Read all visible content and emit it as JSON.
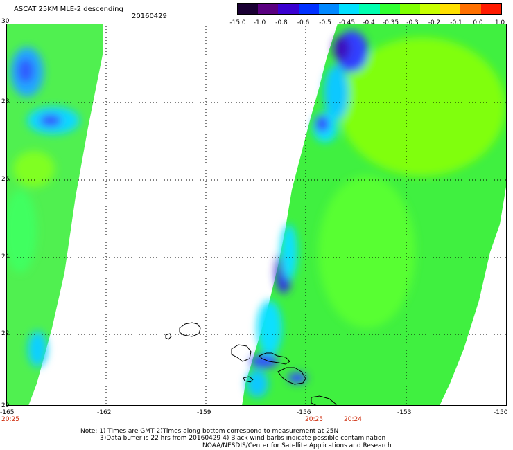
{
  "header": {
    "title": "ASCAT 25KM MLE-2 descending",
    "date": "20160429"
  },
  "colorbar": {
    "labels": [
      "-15.0",
      "-1.0",
      "-0.8",
      "-0.6",
      "-0.5",
      "-0.45",
      "-0.4",
      "-0.35",
      "-0.3",
      "-0.2",
      "-0.1",
      "0.0",
      "1.0"
    ],
    "colors": [
      "#1a0033",
      "#5a0080",
      "#3a00d0",
      "#0030ff",
      "#0088ff",
      "#00e0ff",
      "#00ffb0",
      "#30ff30",
      "#80ff00",
      "#c8ff00",
      "#ffe000",
      "#ff7000",
      "#ff1a00"
    ]
  },
  "map": {
    "lat_labels": [
      "30",
      "28",
      "26",
      "24",
      "22",
      "20"
    ],
    "lon_labels": [
      "-165",
      "-162",
      "-159",
      "-156",
      "-153",
      "-150"
    ],
    "time_labels": [
      "20:25",
      "20:25",
      "20:24"
    ]
  },
  "footer": {
    "line1": "Note: 1) Times are GMT 2)Times along bottom correspond to measurement at 25N",
    "line2": "3)Data buffer is 22 hrs from 20160429 4) Black wind barbs indicate possible contamination",
    "line3": "NOAA/NESDIS/Center for Satellite Applications and Research"
  }
}
